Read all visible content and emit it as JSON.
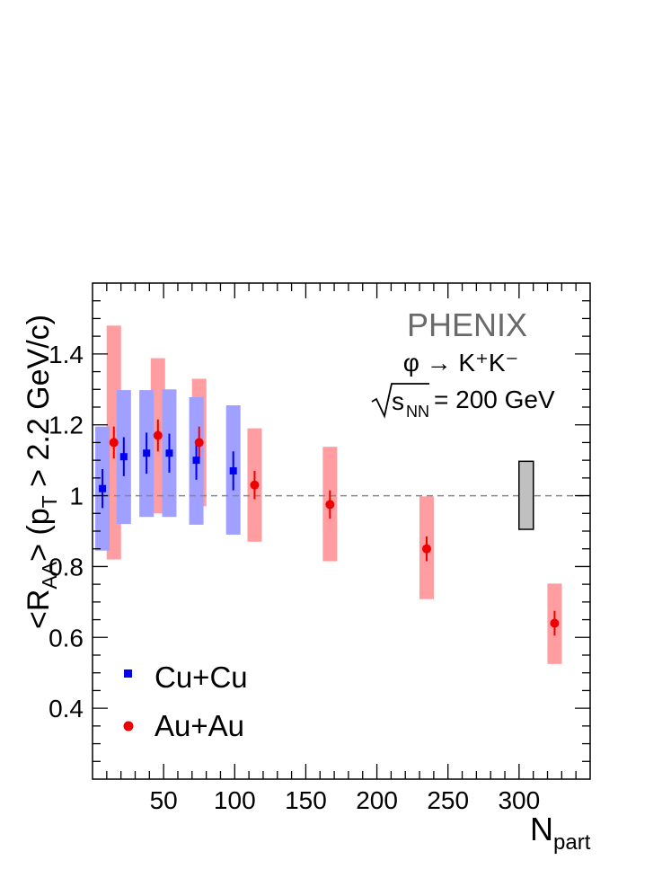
{
  "chart_data": {
    "type": "scatter",
    "title": "",
    "xlabel": "N",
    "xlabel_sub": "part",
    "ylabel_parts": [
      "<R",
      "AA",
      "> (p",
      "T",
      " > 2.2 GeV/c)"
    ],
    "xlim": [
      0,
      350
    ],
    "ylim": [
      0.2,
      1.6
    ],
    "xticks": [
      50,
      100,
      150,
      200,
      250,
      300
    ],
    "yticks": [
      0.4,
      0.6,
      0.8,
      1.0,
      1.2,
      1.4
    ],
    "xtick_labels": [
      "50",
      "100",
      "150",
      "200",
      "250",
      "300"
    ],
    "ytick_labels": [
      "0.4",
      "0.6",
      "0.8",
      "1",
      "1.2",
      "1.4"
    ],
    "reference_line": 1.0,
    "annotations": {
      "experiment": "PHENIX",
      "reaction": "φ → K⁺K⁻",
      "energy_sub": "NN",
      "energy_value": "= 200 GeV"
    },
    "normalization_box": {
      "x": 305,
      "low": 0.905,
      "high": 1.097,
      "color": "#c0c0c0"
    },
    "legend": {
      "placement": "bottom-left"
    },
    "series": [
      {
        "name": "Cu+Cu",
        "color": "#0000ee",
        "band_color": "#9fa0ff",
        "marker": "square",
        "points": [
          {
            "x": 7,
            "y": 1.02,
            "stat": 0.055,
            "sys_low": 0.845,
            "sys_high": 1.195
          },
          {
            "x": 22,
            "y": 1.11,
            "stat": 0.055,
            "sys_low": 0.92,
            "sys_high": 1.298
          },
          {
            "x": 38,
            "y": 1.12,
            "stat": 0.058,
            "sys_low": 0.94,
            "sys_high": 1.298
          },
          {
            "x": 54,
            "y": 1.12,
            "stat": 0.055,
            "sys_low": 0.94,
            "sys_high": 1.3
          },
          {
            "x": 73,
            "y": 1.1,
            "stat": 0.055,
            "sys_low": 0.918,
            "sys_high": 1.278
          },
          {
            "x": 99,
            "y": 1.07,
            "stat": 0.055,
            "sys_low": 0.89,
            "sys_high": 1.255
          }
        ]
      },
      {
        "name": "Au+Au",
        "color": "#ee0000",
        "band_color": "#ff9da0",
        "marker": "circle",
        "points": [
          {
            "x": 15,
            "y": 1.15,
            "stat": 0.045,
            "sys_low": 0.82,
            "sys_high": 1.48
          },
          {
            "x": 46,
            "y": 1.17,
            "stat": 0.045,
            "sys_low": 0.95,
            "sys_high": 1.388
          },
          {
            "x": 75,
            "y": 1.15,
            "stat": 0.045,
            "sys_low": 0.97,
            "sys_high": 1.33
          },
          {
            "x": 114,
            "y": 1.03,
            "stat": 0.04,
            "sys_low": 0.87,
            "sys_high": 1.19
          },
          {
            "x": 167,
            "y": 0.975,
            "stat": 0.04,
            "sys_low": 0.815,
            "sys_high": 1.138
          },
          {
            "x": 235,
            "y": 0.85,
            "stat": 0.035,
            "sys_low": 0.708,
            "sys_high": 0.998
          },
          {
            "x": 325,
            "y": 0.64,
            "stat": 0.035,
            "sys_low": 0.525,
            "sys_high": 0.752
          }
        ]
      }
    ]
  }
}
